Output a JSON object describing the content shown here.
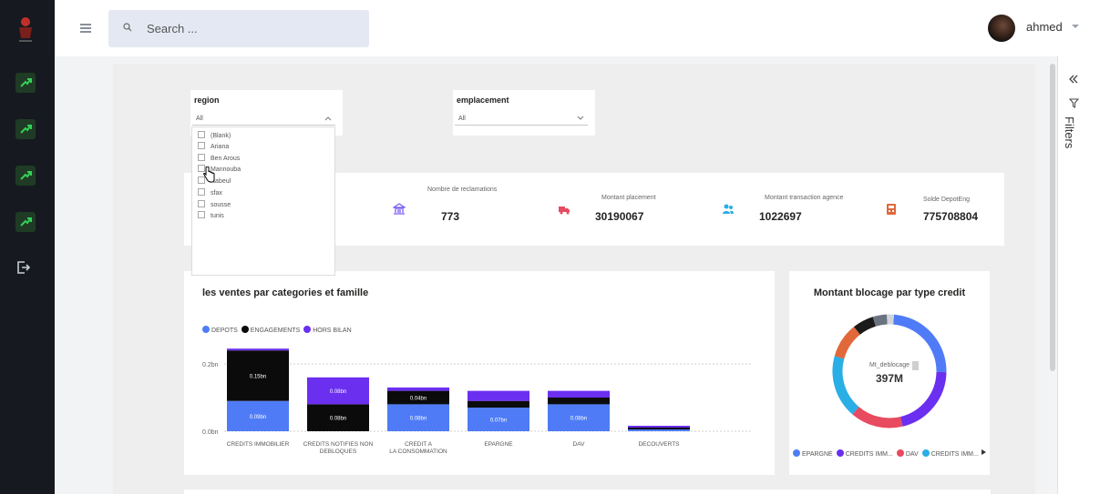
{
  "topbar": {
    "search_placeholder": "Search ...",
    "user_name": "ahmed"
  },
  "slicers": {
    "region": {
      "title": "region",
      "value": "All",
      "options": [
        "(Blank)",
        "Ariana",
        "Ben Arous",
        "Mannouba",
        "Nabeul",
        "sfax",
        "sousse",
        "tunis"
      ]
    },
    "emplacement": {
      "title": "emplacement",
      "value": "All"
    }
  },
  "kpis": [
    {
      "label": "Nombre de reclamations",
      "value": "773",
      "icon": "bank-icon",
      "color": "#7b5cf5",
      "bg": "#efeaff"
    },
    {
      "label": "Montant placement",
      "value": "30190067",
      "icon": "truck-icon",
      "color": "#e84a5f",
      "bg": "#fdeaec"
    },
    {
      "label": "Montant transaction agence",
      "value": "1022697",
      "icon": "users-icon",
      "color": "#2aaee6",
      "bg": "#e5f5fc"
    },
    {
      "label": "Solde DepotEng",
      "value": "775708804",
      "icon": "calculator-icon",
      "color": "#e0683a",
      "bg": "#fdece4"
    }
  ],
  "bar_chart": {
    "title": "les ventes par categories et famille",
    "legend": [
      "DEPOTS",
      "ENGAGEMENTS",
      "HORS BILAN"
    ],
    "colors": {
      "DEPOTS": "#4f7cf6",
      "ENGAGEMENTS": "#0b0b0b",
      "HORS BILAN": "#6b2ff0"
    },
    "y_ticks": [
      "0.2bn",
      "0.0bn"
    ]
  },
  "donut": {
    "title": "Montant blocage par type credit",
    "center_label": "Mt_deblocage",
    "center_value": "397M",
    "legend": [
      "EPARGNE",
      "CREDITS IMM...",
      "DAV",
      "CREDITS IMM..."
    ],
    "legend_colors": [
      "#4f7cf6",
      "#6b2ff0",
      "#e84a5f",
      "#2aaee6"
    ]
  },
  "filters_pane": {
    "label": "Filters"
  },
  "chart_data": [
    {
      "type": "bar",
      "title": "les ventes par categories et famille",
      "categories": [
        "CREDITS IMMOBILIER",
        "CREDITS NOTIFIES NON DEBLOQUES",
        "CREDIT A LA CONSOMMATION",
        "EPARGNE",
        "DAV",
        "DECOUVERTS"
      ],
      "series": [
        {
          "name": "DEPOTS",
          "values": [
            0.09,
            0,
            0.08,
            0.07,
            0.08,
            0.005
          ],
          "labels": [
            "0.09bn",
            "",
            "0.08bn",
            "0.07bn",
            "0.08bn",
            ""
          ]
        },
        {
          "name": "ENGAGEMENTS",
          "values": [
            0.15,
            0.08,
            0.04,
            0.02,
            0.02,
            0.005
          ],
          "labels": [
            "0.15bn",
            "0.08bn",
            "0.04bn",
            "",
            "",
            ""
          ]
        },
        {
          "name": "HORS BILAN",
          "values": [
            0.005,
            0.08,
            0.01,
            0.03,
            0.02,
            0.003
          ],
          "labels": [
            "",
            "0.08bn",
            "",
            "",
            "",
            ""
          ]
        }
      ],
      "ylim": [
        0,
        0.3
      ],
      "y_ticks": [
        0.0,
        0.2
      ],
      "stacked": true,
      "legend_position": "top-left"
    },
    {
      "type": "pie",
      "title": "Montant blocage par type credit",
      "categories": [
        "EPARGNE",
        "CREDITS IMM...",
        "DAV",
        "CREDITS IMM...",
        "other-orange",
        "other-black",
        "other-gray",
        "other-light"
      ],
      "values": [
        24,
        21,
        15,
        18,
        10,
        6,
        4,
        2
      ],
      "colors": [
        "#4f7cf6",
        "#6b2ff0",
        "#e84a5f",
        "#2aaee6",
        "#e0683a",
        "#1b1b1b",
        "#6b7280",
        "#d1d5db"
      ],
      "donut": true,
      "center_value": "397M"
    }
  ]
}
